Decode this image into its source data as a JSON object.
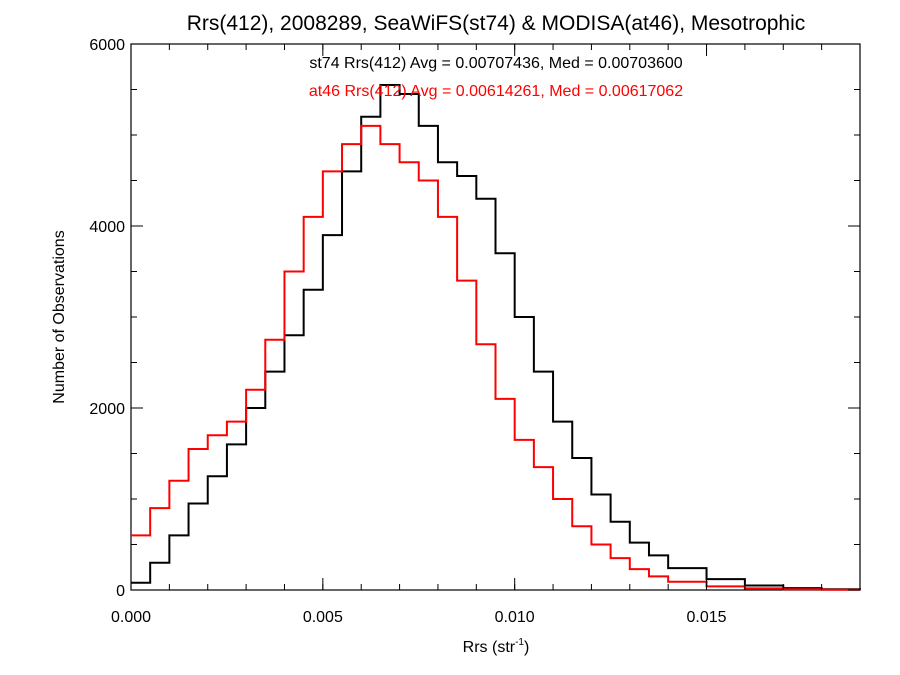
{
  "chart_data": {
    "type": "line",
    "step": true,
    "title": "Rrs(412), 2008289, SeaWiFS(st74) & MODISA(at46), Mesotrophic",
    "xlabel": "Rrs (str",
    "xlabel_sup": "-1",
    "xlabel_close": ")",
    "ylabel": "Number of Observations",
    "xlim": [
      0.0,
      0.019
    ],
    "ylim": [
      0,
      6000
    ],
    "xticks": [
      0.0,
      0.005,
      0.01,
      0.015
    ],
    "xtick_labels": [
      "0.000",
      "0.005",
      "0.010",
      "0.015"
    ],
    "yticks": [
      0,
      2000,
      4000,
      6000
    ],
    "ytick_labels": [
      "0",
      "2000",
      "4000",
      "6000"
    ],
    "grid": false,
    "annotations": [
      {
        "text": "st74 Rrs(412) Avg = 0.00707436, Med = 0.00703600",
        "color": "#000000"
      },
      {
        "text": "at46 Rrs(412) Avg = 0.00614261, Med = 0.00617062",
        "color": "#ff0000"
      }
    ],
    "series": [
      {
        "color": "#000000",
        "x": [
          0.0,
          0.0005,
          0.001,
          0.0015,
          0.002,
          0.0025,
          0.003,
          0.0035,
          0.004,
          0.0045,
          0.005,
          0.0055,
          0.006,
          0.0065,
          0.007,
          0.0075,
          0.008,
          0.0085,
          0.009,
          0.0095,
          0.01,
          0.0105,
          0.011,
          0.0115,
          0.012,
          0.0125,
          0.013,
          0.0135,
          0.014,
          0.015,
          0.016,
          0.017,
          0.018,
          0.019
        ],
        "y": [
          80,
          300,
          600,
          950,
          1250,
          1600,
          2000,
          2400,
          2800,
          3300,
          3900,
          4600,
          5200,
          5550,
          5450,
          5100,
          4700,
          4550,
          4300,
          3700,
          3000,
          2400,
          1850,
          1450,
          1050,
          750,
          520,
          380,
          240,
          120,
          50,
          20,
          8,
          3
        ]
      },
      {
        "color": "#ff0000",
        "x": [
          0.0,
          0.0005,
          0.001,
          0.0015,
          0.002,
          0.0025,
          0.003,
          0.0035,
          0.004,
          0.0045,
          0.005,
          0.0055,
          0.006,
          0.0065,
          0.007,
          0.0075,
          0.008,
          0.0085,
          0.009,
          0.0095,
          0.01,
          0.0105,
          0.011,
          0.0115,
          0.012,
          0.0125,
          0.013,
          0.0135,
          0.014,
          0.015,
          0.016,
          0.017,
          0.018,
          0.019
        ],
        "y": [
          600,
          900,
          1200,
          1550,
          1700,
          1850,
          2200,
          2750,
          3500,
          4100,
          4600,
          4900,
          5100,
          4900,
          4700,
          4500,
          4100,
          3400,
          2700,
          2100,
          1650,
          1350,
          1000,
          700,
          500,
          350,
          230,
          150,
          90,
          40,
          18,
          8,
          3,
          1
        ]
      }
    ]
  }
}
